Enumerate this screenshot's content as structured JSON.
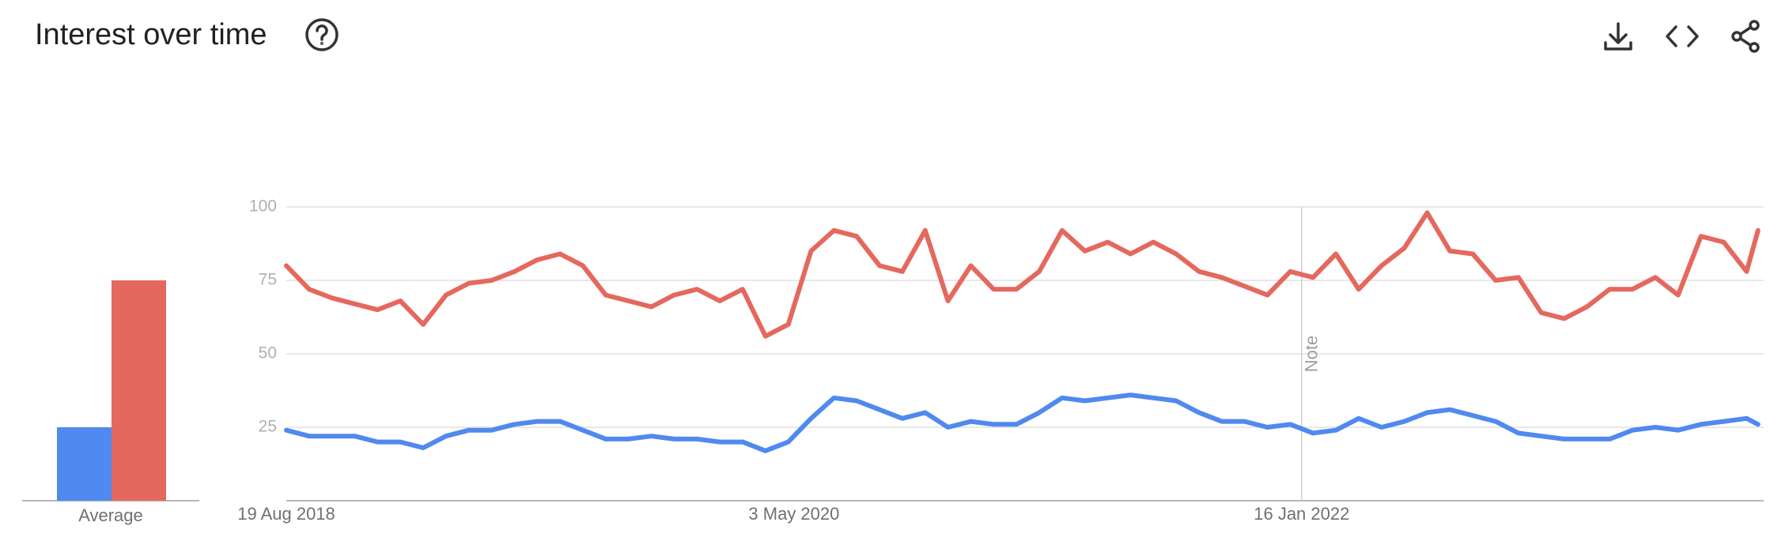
{
  "chart_data": {
    "type": "line",
    "title": "Interest over time",
    "average_label": "Average",
    "x": [
      "2018-08-19",
      "2018-09-16",
      "2018-10-14",
      "2018-11-11",
      "2018-12-09",
      "2019-01-06",
      "2019-02-03",
      "2019-03-03",
      "2019-03-31",
      "2019-04-28",
      "2019-05-26",
      "2019-06-23",
      "2019-07-21",
      "2019-08-18",
      "2019-09-15",
      "2019-10-13",
      "2019-11-10",
      "2019-12-08",
      "2020-01-05",
      "2020-02-02",
      "2020-03-01",
      "2020-03-29",
      "2020-04-26",
      "2020-05-24",
      "2020-06-21",
      "2020-07-19",
      "2020-08-16",
      "2020-09-13",
      "2020-10-11",
      "2020-11-08",
      "2020-12-06",
      "2021-01-03",
      "2021-01-31",
      "2021-02-28",
      "2021-03-28",
      "2021-04-25",
      "2021-05-23",
      "2021-06-20",
      "2021-07-18",
      "2021-08-15",
      "2021-09-12",
      "2021-10-10",
      "2021-11-07",
      "2021-12-05",
      "2022-01-02",
      "2022-01-30",
      "2022-02-27",
      "2022-03-27",
      "2022-04-24",
      "2022-05-22",
      "2022-06-19",
      "2022-07-17",
      "2022-08-14",
      "2022-09-11",
      "2022-10-09",
      "2022-11-06",
      "2022-12-04",
      "2023-01-01",
      "2023-01-29",
      "2023-02-26",
      "2023-03-26",
      "2023-04-23",
      "2023-05-21",
      "2023-06-18",
      "2023-07-16",
      "2023-07-30"
    ],
    "series": [
      {
        "color": "#5089ef",
        "average": 25,
        "values": [
          24,
          22,
          22,
          22,
          20,
          20,
          18,
          22,
          24,
          24,
          26,
          27,
          27,
          24,
          21,
          21,
          22,
          21,
          21,
          20,
          20,
          17,
          20,
          28,
          35,
          34,
          31,
          28,
          30,
          25,
          27,
          26,
          26,
          30,
          35,
          34,
          35,
          36,
          35,
          34,
          30,
          27,
          27,
          25,
          26,
          23,
          24,
          28,
          25,
          27,
          30,
          31,
          29,
          27,
          23,
          22,
          21,
          21,
          21,
          24,
          25,
          24,
          26,
          27,
          28,
          26
        ]
      },
      {
        "color": "#e5685e",
        "average": 75,
        "values": [
          80,
          72,
          69,
          67,
          65,
          68,
          60,
          70,
          74,
          75,
          78,
          82,
          84,
          80,
          70,
          68,
          66,
          70,
          72,
          68,
          72,
          56,
          60,
          85,
          92,
          90,
          80,
          78,
          92,
          68,
          80,
          72,
          72,
          78,
          92,
          85,
          88,
          84,
          88,
          84,
          78,
          76,
          73,
          70,
          78,
          76,
          84,
          72,
          80,
          86,
          98,
          85,
          84,
          75,
          76,
          64,
          62,
          66,
          72,
          72,
          76,
          70,
          90,
          88,
          78,
          92
        ]
      }
    ],
    "xlim": [
      "2018-08-19",
      "2023-08-06"
    ],
    "xticks": [
      {
        "value": "2018-08-19",
        "label": "19 Aug 2018"
      },
      {
        "value": "2020-05-03",
        "label": "3 May 2020"
      },
      {
        "value": "2022-01-16",
        "label": "16 Jan 2022"
      }
    ],
    "ylim": [
      0,
      100
    ],
    "yticks": [
      25,
      50,
      75,
      100
    ],
    "grid": true,
    "annotations": [
      {
        "x": "2022-01-16",
        "text": "Note"
      }
    ]
  }
}
